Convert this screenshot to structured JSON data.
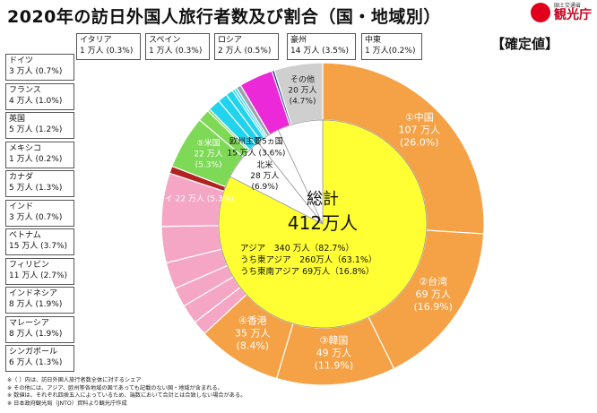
{
  "header": {
    "title": "2020年の訪日外国人旅行者数及び割合（国・地域別）",
    "confirmed": "【確定値】",
    "logo_small": "国土交通省",
    "logo_main": "観光庁"
  },
  "chart_data": {
    "type": "pie",
    "title": "2020年の訪日外国人旅行者数及び割合（国・地域別）",
    "unit": "万人",
    "total_label": "総計",
    "total_value": "412万人",
    "center_lines": [
      "アジア　340 万人（82.7%）",
      "うち東アジア　260万人（63.1%）",
      "うち東南アジア 69万人（16.8%）"
    ],
    "outer_ring": [
      {
        "name": "中国",
        "label": "①中国",
        "value": 107,
        "percent": 26.0,
        "color": "#f5a146",
        "text": "107 万人",
        "pct_text": "(26.0%)"
      },
      {
        "name": "台湾",
        "label": "②台湾",
        "value": 69,
        "percent": 16.9,
        "color": "#f5a146",
        "text": "69 万人",
        "pct_text": "(16.9%)"
      },
      {
        "name": "韓国",
        "label": "③韓国",
        "value": 49,
        "percent": 11.9,
        "color": "#f5a146",
        "text": "49 万人",
        "pct_text": "(11.9%)"
      },
      {
        "name": "香港",
        "label": "④香港",
        "value": 35,
        "percent": 8.4,
        "color": "#f5a146",
        "text": "35 万人",
        "pct_text": "(8.4%)"
      },
      {
        "name": "シンガポール",
        "value": 6,
        "percent": 1.3,
        "color": "#f4a6c4"
      },
      {
        "name": "マレーシア",
        "value": 8,
        "percent": 1.9,
        "color": "#f4a6c4"
      },
      {
        "name": "インドネシア",
        "value": 8,
        "percent": 1.9,
        "color": "#f4a6c4"
      },
      {
        "name": "フィリピン",
        "value": 11,
        "percent": 2.7,
        "color": "#f4a6c4"
      },
      {
        "name": "ベトナム",
        "value": 15,
        "percent": 3.7,
        "color": "#f4a6c4"
      },
      {
        "name": "タイ",
        "label": "⑤タイ",
        "value": 22,
        "percent": 5.3,
        "color": "#f4a6c4",
        "text": "22 万人 (5.3%)"
      },
      {
        "name": "インド",
        "value": 3,
        "percent": 0.7,
        "color": "#b22222"
      },
      {
        "name": "米国",
        "label": "⑤米国",
        "value": 22,
        "percent": 5.3,
        "color": "#7ed957",
        "text": "22 万人",
        "pct_text": "(5.3%)"
      },
      {
        "name": "カナダ",
        "value": 5,
        "percent": 1.3,
        "color": "#7ed957"
      },
      {
        "name": "メキシコ",
        "value": 1,
        "percent": 0.2,
        "color": "#7ed957"
      },
      {
        "name": "英国",
        "value": 5,
        "percent": 1.2,
        "color": "#22d3ee"
      },
      {
        "name": "フランス",
        "value": 4,
        "percent": 1.0,
        "color": "#22d3ee"
      },
      {
        "name": "ドイツ",
        "value": 3,
        "percent": 0.7,
        "color": "#22d3ee"
      },
      {
        "name": "イタリア",
        "value": 1,
        "percent": 0.3,
        "color": "#22d3ee"
      },
      {
        "name": "スペイン",
        "value": 1,
        "percent": 0.3,
        "color": "#22d3ee"
      },
      {
        "name": "ロシア",
        "value": 2,
        "percent": 0.5,
        "color": "#9ca3af"
      },
      {
        "name": "豪州",
        "value": 14,
        "percent": 3.5,
        "color": "#ec29d8"
      },
      {
        "name": "中東",
        "value": 1,
        "percent": 0.2,
        "color": "#1e3a8a"
      },
      {
        "name": "その他",
        "label": "その他",
        "value": 20,
        "percent": 4.7,
        "color": "#cfcfcf",
        "text": "20 万人",
        "pct_text": "(4.7%)"
      }
    ],
    "inner_ring": [
      {
        "name": "アジア",
        "value": 340,
        "percent": 82.7,
        "color": "#ffff33"
      },
      {
        "name": "北米",
        "value": 28,
        "percent": 6.9,
        "color": "#ffffff",
        "text": "28 万人",
        "pct_text": "(6.9%)"
      },
      {
        "name": "欧州主要5ヵ国",
        "value": 15,
        "percent": 3.6,
        "color": "#ffffff",
        "text": "15 万人 (3.6%)"
      },
      {
        "name": "その他",
        "value": 29,
        "percent": 6.8,
        "color": "#ffffff"
      }
    ]
  },
  "side_boxes": [
    {
      "name": "ドイツ",
      "value": "3 万人 (0.7%)"
    },
    {
      "name": "フランス",
      "value": "4 万人 (1.0%)"
    },
    {
      "name": "英国",
      "value": "5 万人 (1.2%)"
    },
    {
      "name": "メキシコ",
      "value": "1 万人 (0.2%)"
    },
    {
      "name": "カナダ",
      "value": "5 万人 (1.3%)"
    },
    {
      "name": "インド",
      "value": "3 万人 (0.7%)"
    },
    {
      "name": "ベトナム",
      "value": "15 万人 (3.7%)"
    },
    {
      "name": "フィリピン",
      "value": "11 万人 (2.7%)"
    },
    {
      "name": "インドネシア",
      "value": "8 万人 (1.9%)"
    },
    {
      "name": "マレーシア",
      "value": "8 万人 (1.9%)"
    },
    {
      "name": "シンガポール",
      "value": "6 万人 (1.3%)"
    }
  ],
  "top_boxes": [
    {
      "name": "イタリア",
      "value": "1 万人 (0.3%)"
    },
    {
      "name": "スペイン",
      "value": "1 万人 (0.3%)"
    },
    {
      "name": "ロシア",
      "value": "2 万人 (0.5%)"
    },
    {
      "name": "豪州",
      "value": "14 万人 (3.5%)"
    },
    {
      "name": "中東",
      "value": "1 万人(0.2%)"
    }
  ],
  "notes": [
    "※（ ）内は、訪日外国人旅行者数全体に対するシェア",
    "※ その他には、アジア、欧州等各地域の国であっても記載のない国・地域が含まれる。",
    "※ 数値は、それぞれ四捨五入によっているため、端数において合計とは合致しない場合がある。",
    "※ 日本政府観光局（JNTO）資料より観光庁作成"
  ]
}
